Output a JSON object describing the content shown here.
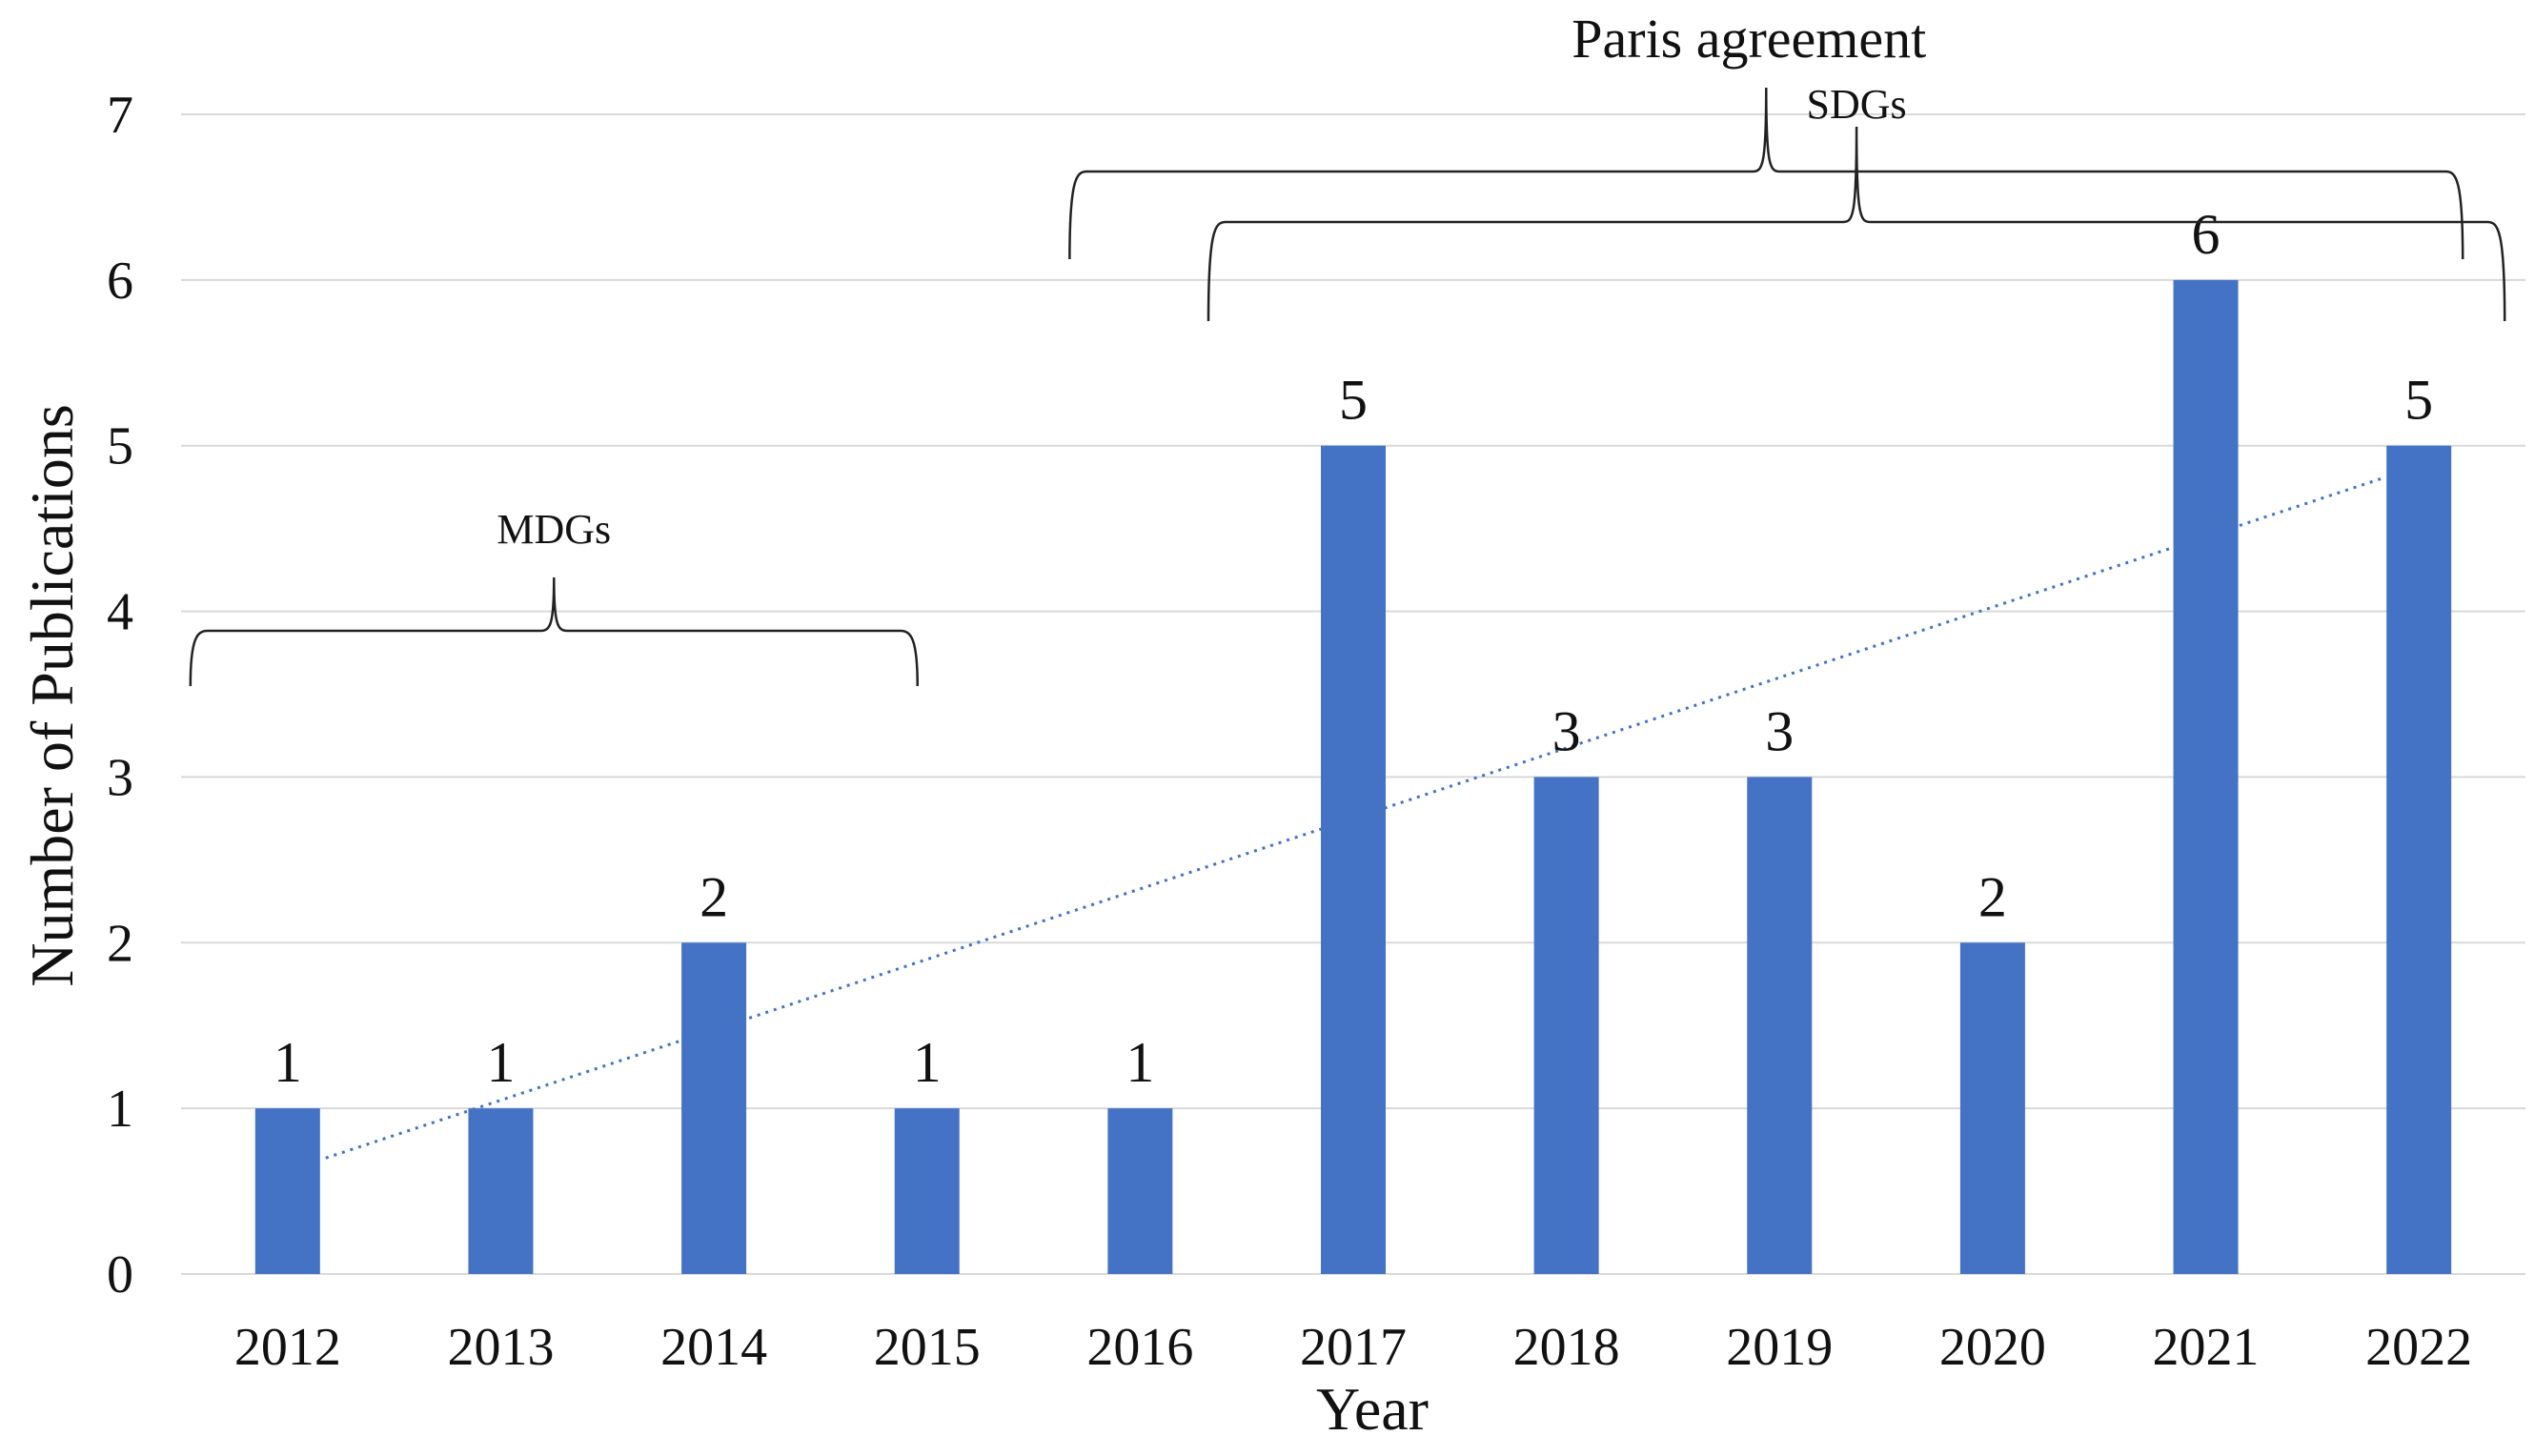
{
  "chart_data": {
    "type": "bar",
    "categories": [
      "2012",
      "2013",
      "2014",
      "2015",
      "2016",
      "2017",
      "2018",
      "2019",
      "2020",
      "2021",
      "2022"
    ],
    "values": [
      1,
      1,
      2,
      1,
      1,
      5,
      3,
      3,
      2,
      6,
      5
    ],
    "data_labels": [
      "1",
      "1",
      "2",
      "1",
      "1",
      "5",
      "3",
      "3",
      "2",
      "6",
      "5"
    ],
    "xlabel": "Year",
    "ylabel": "Number of Publications",
    "ylim": [
      0,
      7
    ],
    "yticks": [
      "0",
      "1",
      "2",
      "3",
      "4",
      "5",
      "6",
      "7"
    ],
    "grid": true,
    "bar_color": "#4472c4",
    "trendline": {
      "type": "linear",
      "style": "dotted",
      "color": "#4472c4",
      "start": {
        "x": "2012",
        "y": 0.7
      },
      "end": {
        "x": "2022",
        "y": 4.8
      }
    },
    "annotations": [
      {
        "label": "MDGs",
        "from": "2012",
        "to": "2015"
      },
      {
        "label": "Paris agreement",
        "from": "2016",
        "to": "2022"
      },
      {
        "label": "SDGs",
        "from": "2017",
        "to": "2022"
      }
    ]
  }
}
